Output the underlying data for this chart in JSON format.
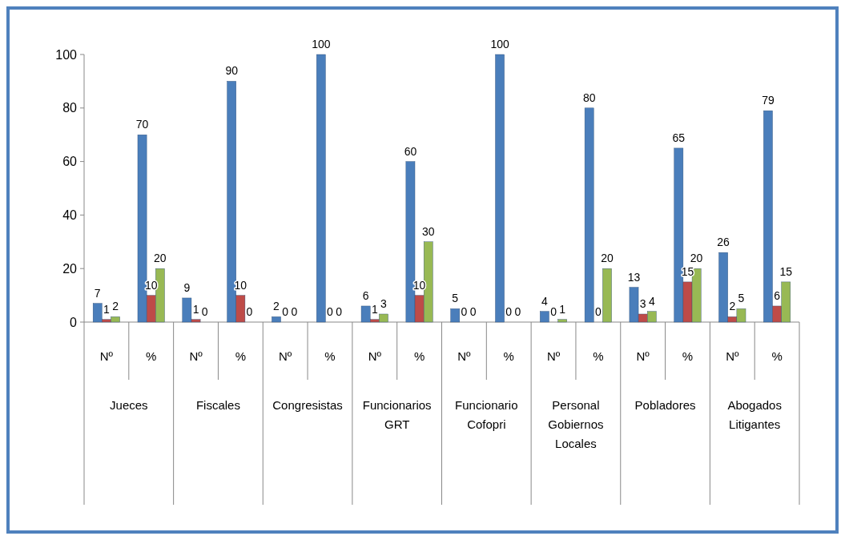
{
  "chart_data": {
    "type": "bar",
    "categories": [
      "Nº",
      "%",
      "Nº",
      "%",
      "Nº",
      "%",
      "Nº",
      "%",
      "Nº",
      "%",
      "Nº",
      "%",
      "Nº",
      "%",
      "Nº",
      "%"
    ],
    "annotations": [
      "Jueces",
      "Fiscales",
      "Congresistas",
      "Funcionarios GRT",
      "Funcionario Cofopri",
      "Personal Gobiernos Locales",
      "Pobladores",
      "Abogados Litigantes"
    ],
    "series": [
      {
        "color": "#4a7ebb",
        "values": [
          7,
          70,
          9,
          90,
          2,
          100,
          6,
          60,
          5,
          100,
          4,
          80,
          13,
          65,
          26,
          79
        ]
      },
      {
        "color": "#be4b48",
        "values": [
          1,
          10,
          1,
          10,
          0,
          0,
          1,
          10,
          0,
          0,
          0,
          0,
          3,
          15,
          2,
          6
        ]
      },
      {
        "color": "#98b954",
        "values": [
          2,
          20,
          0,
          0,
          0,
          0,
          3,
          30,
          0,
          0,
          1,
          20,
          4,
          20,
          5,
          15
        ]
      }
    ],
    "ylim": [
      0,
      100
    ],
    "yticks": [
      0,
      20,
      40,
      60,
      80,
      100
    ],
    "data_labels": true,
    "grid": false
  }
}
